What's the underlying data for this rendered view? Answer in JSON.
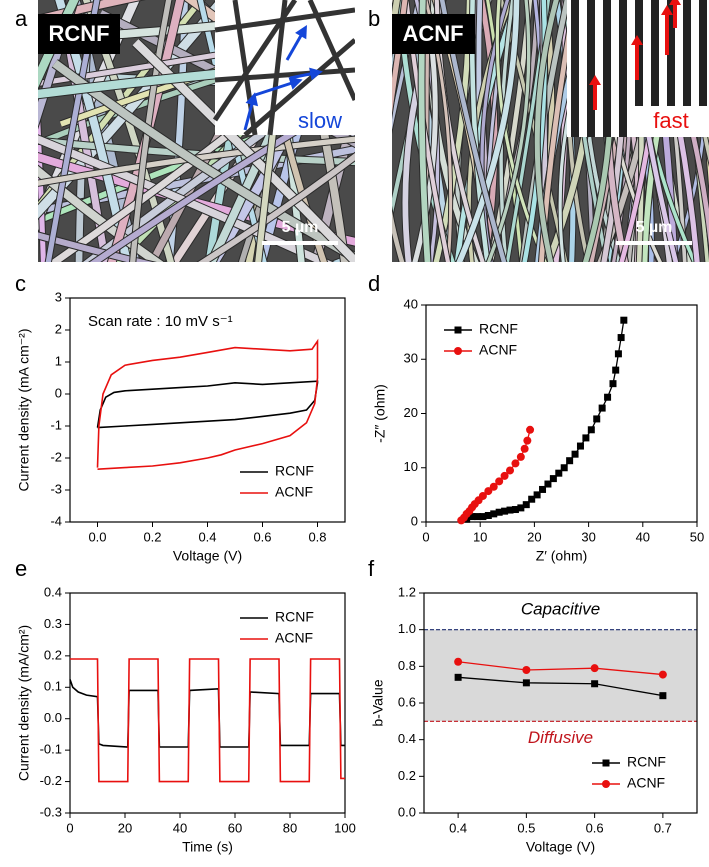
{
  "images": [
    {
      "panel_letter": "a",
      "label": "RCNF",
      "inset_text": "slow",
      "scale_bar": "5 µm"
    },
    {
      "panel_letter": "b",
      "label": "ACNF",
      "inset_text": "fast",
      "scale_bar": "5 µm"
    }
  ],
  "chart_data": [
    {
      "type": "line",
      "panel_letter": "c",
      "xlabel": "Voltage (V)",
      "ylabel": "Current density (mA cm⁻²)",
      "xlim": [
        -0.1,
        0.9
      ],
      "ylim": [
        -4,
        3
      ],
      "xticks": [
        {
          "value": 0,
          "label": "0.0"
        },
        0.2,
        0.4,
        0.6,
        0.8
      ],
      "yticks": [
        -4,
        -3,
        -2,
        -1,
        0,
        1,
        2,
        3
      ],
      "legend": "lower right",
      "annotations": [
        {
          "text": "Scan rate : 10 mV s⁻¹",
          "color": "#000000"
        }
      ],
      "series": [
        {
          "name": "RCNF",
          "color": "#000000",
          "x": [
            0,
            0.01,
            0.03,
            0.06,
            0.1,
            0.2,
            0.3,
            0.4,
            0.5,
            0.6,
            0.7,
            0.8,
            0.8,
            0.79,
            0.76,
            0.7,
            0.6,
            0.5,
            0.4,
            0.3,
            0.2,
            0.1,
            0
          ],
          "values": [
            -1.05,
            -0.5,
            -0.1,
            0.05,
            0.1,
            0.15,
            0.2,
            0.25,
            0.35,
            0.3,
            0.35,
            0.4,
            0.35,
            -0.2,
            -0.5,
            -0.6,
            -0.7,
            -0.8,
            -0.85,
            -0.9,
            -0.95,
            -1.0,
            -1.05
          ]
        },
        {
          "name": "ACNF",
          "color": "#e8100f",
          "x": [
            0,
            0.005,
            0.02,
            0.05,
            0.1,
            0.2,
            0.3,
            0.4,
            0.5,
            0.6,
            0.7,
            0.78,
            0.8,
            0.8,
            0.79,
            0.76,
            0.7,
            0.6,
            0.5,
            0.45,
            0.4,
            0.3,
            0.2,
            0.1,
            0
          ],
          "values": [
            -2.3,
            -1.0,
            0.0,
            0.6,
            0.9,
            1.05,
            1.15,
            1.3,
            1.45,
            1.4,
            1.35,
            1.4,
            1.65,
            0.5,
            -0.3,
            -0.9,
            -1.3,
            -1.55,
            -1.75,
            -1.9,
            -2.0,
            -2.15,
            -2.25,
            -2.3,
            -2.35
          ]
        }
      ]
    },
    {
      "type": "line",
      "panel_letter": "d",
      "xlabel": "Z′ (ohm)",
      "ylabel": "-Z″ (ohm)",
      "xlim": [
        0,
        50
      ],
      "ylim": [
        0,
        40
      ],
      "xticks": [
        0,
        10,
        20,
        30,
        40,
        50
      ],
      "yticks": [
        0,
        10,
        20,
        30,
        40
      ],
      "legend": "upper left",
      "annotations": [],
      "series": [
        {
          "name": "RCNF",
          "color": "#000000",
          "marker": "square",
          "x": [
            7.5,
            8.5,
            9.5,
            10.5,
            11.5,
            12.5,
            13.5,
            14.5,
            15.5,
            16.5,
            17.5,
            18.5,
            19.5,
            20.5,
            21.5,
            22.5,
            23.5,
            24.5,
            25.5,
            26.5,
            27.5,
            28.5,
            29.5,
            30.5,
            31.5,
            32.5,
            33.5,
            34.5,
            35,
            35.5,
            36,
            36.5
          ],
          "values": [
            0.5,
            1,
            1,
            1,
            1.2,
            1.5,
            1.8,
            2,
            2.2,
            2.3,
            2.6,
            3.2,
            4.2,
            5,
            6,
            7,
            8,
            9,
            10,
            11.3,
            12.5,
            14,
            15.5,
            17,
            19,
            21,
            23,
            25.5,
            28,
            31,
            34,
            37.2
          ]
        },
        {
          "name": "ACNF",
          "color": "#e8100f",
          "marker": "circle",
          "x": [
            6.5,
            7,
            7.5,
            8,
            8.5,
            9,
            9.7,
            10.5,
            11.5,
            12.5,
            13.5,
            14.5,
            15.5,
            16.5,
            17.5,
            18.2,
            18.7,
            19.2
          ],
          "values": [
            0.3,
            0.8,
            1.5,
            2,
            2.7,
            3.3,
            4,
            4.8,
            5.7,
            6.5,
            7.5,
            8.5,
            9.5,
            10.8,
            12,
            13.5,
            15,
            17
          ]
        }
      ]
    },
    {
      "type": "line",
      "panel_letter": "e",
      "xlabel": "Time (s)",
      "ylabel": "Current density (mA/cm²)",
      "xlim": [
        0,
        100
      ],
      "ylim": [
        -0.3,
        0.4
      ],
      "xticks": [
        0,
        20,
        40,
        60,
        80,
        100
      ],
      "yticks": [
        -0.3,
        -0.2,
        -0.1,
        {
          "value": 0,
          "label": "0.0"
        },
        0.1,
        0.2,
        0.3,
        0.4
      ],
      "legend": "upper right",
      "annotations": [],
      "series": [
        {
          "name": "RCNF",
          "color": "#000000",
          "x": [
            0,
            1,
            3,
            6,
            10,
            10.5,
            12,
            21,
            21.5,
            32,
            32.5,
            43,
            43.5,
            54,
            54.5,
            65,
            65.5,
            76,
            76.5,
            87,
            87.5,
            98,
            98.5,
            100
          ],
          "values": [
            0.125,
            0.1,
            0.085,
            0.075,
            0.07,
            -0.08,
            -0.085,
            -0.09,
            0.09,
            0.09,
            -0.09,
            -0.09,
            0.09,
            0.095,
            -0.09,
            -0.09,
            0.085,
            0.08,
            -0.085,
            -0.085,
            0.08,
            0.08,
            -0.085,
            -0.085
          ]
        },
        {
          "name": "ACNF",
          "color": "#e8100f",
          "x": [
            0,
            10,
            10.5,
            21,
            21.5,
            32,
            32.5,
            43,
            43.5,
            54,
            54.5,
            65,
            65.5,
            76,
            76.5,
            87,
            87.5,
            98,
            98.5,
            100
          ],
          "values": [
            0.19,
            0.19,
            -0.2,
            -0.2,
            0.19,
            0.19,
            -0.2,
            -0.2,
            0.19,
            0.19,
            -0.2,
            -0.2,
            0.19,
            0.19,
            -0.2,
            -0.2,
            0.19,
            0.19,
            -0.19,
            -0.19
          ]
        }
      ]
    },
    {
      "type": "line",
      "panel_letter": "f",
      "xlabel": "Voltage (V)",
      "ylabel": "b-Value",
      "xlim": [
        0.35,
        0.75
      ],
      "ylim": [
        0,
        1.2
      ],
      "xticks": [
        0.4,
        0.5,
        0.6,
        0.7
      ],
      "yticks": [
        {
          "value": 0,
          "label": "0.0"
        },
        0.2,
        0.4,
        0.6,
        0.8,
        {
          "value": 1,
          "label": "1.0"
        },
        1.2
      ],
      "legend": "lower right",
      "reference_lines": [
        {
          "value": 1.0,
          "color": "#1a2a6c"
        },
        {
          "value": 0.5,
          "color": "#c0141c"
        }
      ],
      "annotations": [
        {
          "text": "Capacitive",
          "color": "#000000"
        },
        {
          "text": "Diffusive",
          "color": "#c0141c"
        }
      ],
      "series": [
        {
          "name": "RCNF",
          "color": "#000000",
          "marker": "square",
          "x": [
            0.4,
            0.5,
            0.6,
            0.7
          ],
          "values": [
            0.74,
            0.71,
            0.705,
            0.64
          ]
        },
        {
          "name": "ACNF",
          "color": "#e8100f",
          "marker": "circle",
          "x": [
            0.4,
            0.5,
            0.6,
            0.7
          ],
          "values": [
            0.825,
            0.78,
            0.79,
            0.755
          ]
        }
      ]
    }
  ]
}
